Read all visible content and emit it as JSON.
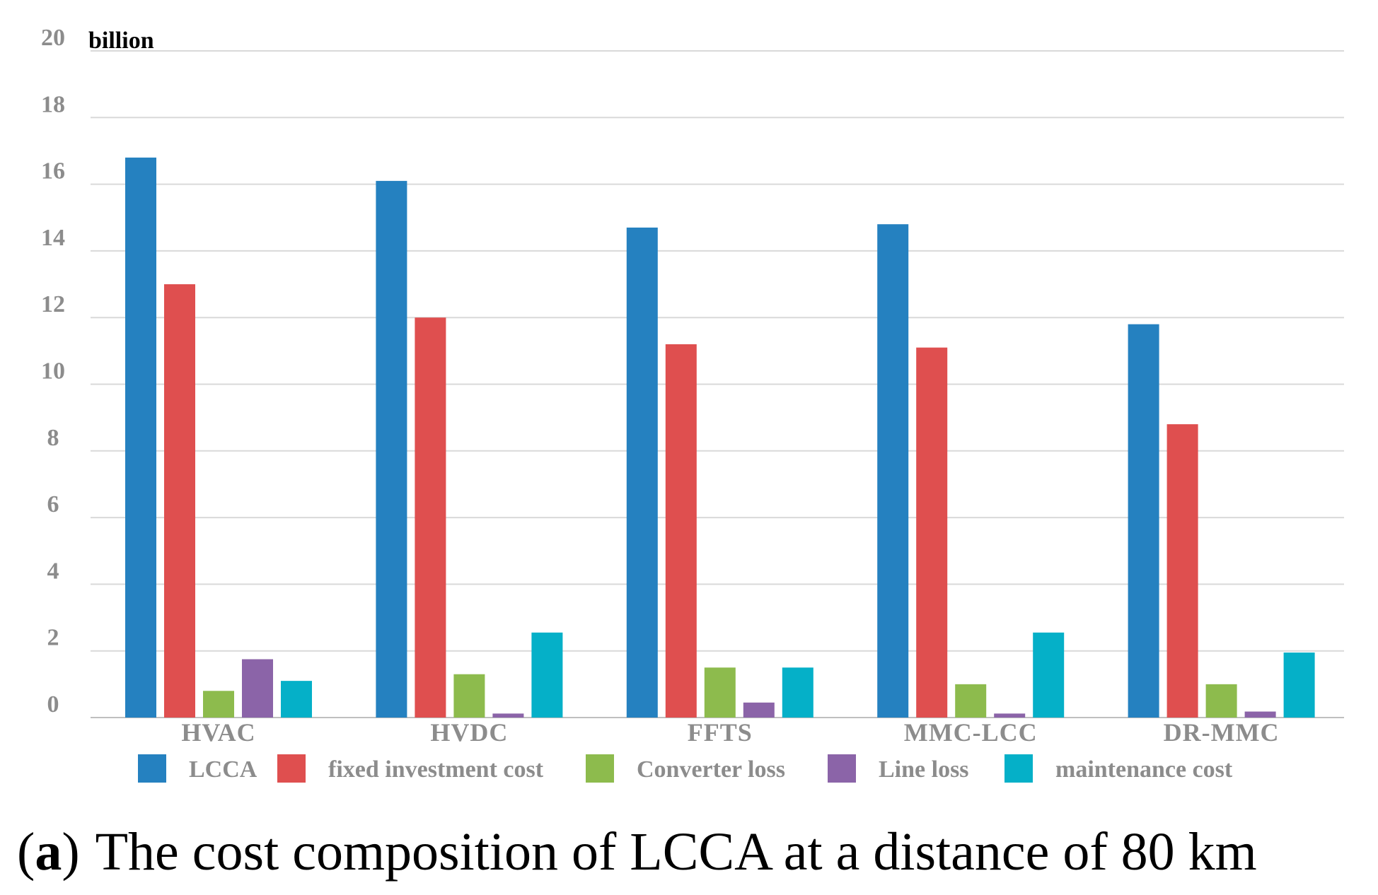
{
  "chart_data": {
    "type": "bar",
    "unit_label": "billion",
    "ylim": [
      0,
      20
    ],
    "yticks": [
      0,
      2,
      4,
      6,
      8,
      10,
      12,
      14,
      16,
      18,
      20
    ],
    "grid": true,
    "legend_position": "bottom",
    "categories": [
      "HVAC",
      "HVDC",
      "FFTS",
      "MMC-LCC",
      "DR-MMC"
    ],
    "series": [
      {
        "name": "LCCA",
        "color": "#2581c0",
        "values": [
          16.8,
          16.1,
          14.7,
          14.8,
          11.8
        ]
      },
      {
        "name": "fixed investment cost",
        "color": "#df4f4f",
        "values": [
          13.0,
          12.0,
          11.2,
          11.1,
          8.8
        ]
      },
      {
        "name": "Converter loss",
        "color": "#8dbb4d",
        "values": [
          0.8,
          1.3,
          1.5,
          1.0,
          1.0
        ]
      },
      {
        "name": "Line loss",
        "color": "#8b64a8",
        "values": [
          1.75,
          0.12,
          0.45,
          0.12,
          0.18
        ]
      },
      {
        "name": "maintenance cost",
        "color": "#05b0c8",
        "values": [
          1.1,
          2.55,
          1.5,
          2.55,
          1.95
        ]
      }
    ]
  },
  "caption": {
    "letter": "a",
    "open_paren": "(",
    "close_paren": ")",
    "text": "The cost composition of LCCA at a distance of 80 km"
  }
}
